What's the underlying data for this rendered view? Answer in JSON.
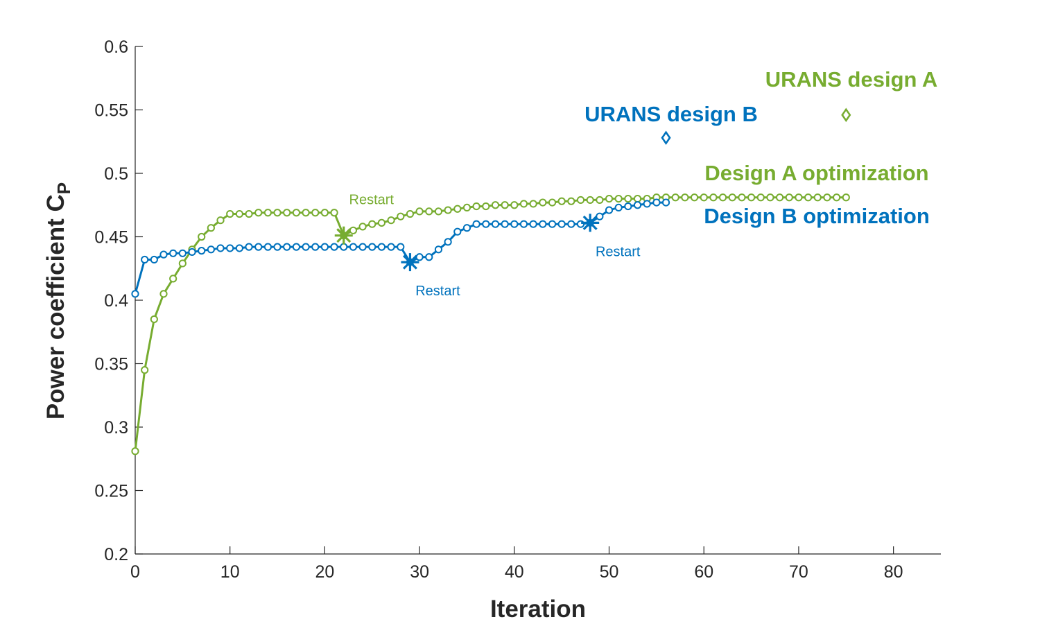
{
  "chart_data": {
    "type": "line",
    "xlabel": "Iteration",
    "ylabel": {
      "main": "Power coefficient C",
      "subscript": "P"
    },
    "xlim": [
      0,
      85
    ],
    "ylim": [
      0.2,
      0.6
    ],
    "xticks": [
      0,
      10,
      20,
      30,
      40,
      50,
      60,
      70,
      80
    ],
    "yticks": [
      0.2,
      0.25,
      0.3,
      0.35,
      0.4,
      0.45,
      0.5,
      0.55,
      0.6
    ],
    "grid": false,
    "colors": {
      "designA": "#77AC30",
      "designB": "#0072BD",
      "axis": "#262626"
    },
    "series": [
      {
        "key": "designA",
        "label": "Design A optimization",
        "x": [
          0,
          1,
          2,
          3,
          4,
          5,
          6,
          7,
          8,
          9,
          10,
          11,
          12,
          13,
          14,
          15,
          16,
          17,
          18,
          19,
          20,
          21,
          22,
          23,
          24,
          25,
          26,
          27,
          28,
          29,
          30,
          31,
          32,
          33,
          34,
          35,
          36,
          37,
          38,
          39,
          40,
          41,
          42,
          43,
          44,
          45,
          46,
          47,
          48,
          49,
          50,
          51,
          52,
          53,
          54,
          55,
          56,
          57,
          58,
          59,
          60,
          61,
          62,
          63,
          64,
          65,
          66,
          67,
          68,
          69,
          70,
          71,
          72,
          73,
          74,
          75
        ],
        "y": [
          0.281,
          0.345,
          0.385,
          0.405,
          0.417,
          0.429,
          0.44,
          0.45,
          0.457,
          0.463,
          0.468,
          0.468,
          0.468,
          0.469,
          0.469,
          0.469,
          0.469,
          0.469,
          0.469,
          0.469,
          0.469,
          0.469,
          0.451,
          0.455,
          0.458,
          0.46,
          0.461,
          0.463,
          0.466,
          0.468,
          0.47,
          0.47,
          0.47,
          0.471,
          0.472,
          0.473,
          0.474,
          0.474,
          0.475,
          0.475,
          0.475,
          0.476,
          0.476,
          0.477,
          0.477,
          0.478,
          0.478,
          0.479,
          0.479,
          0.479,
          0.48,
          0.48,
          0.48,
          0.48,
          0.48,
          0.481,
          0.481,
          0.481,
          0.481,
          0.481,
          0.481,
          0.481,
          0.481,
          0.481,
          0.481,
          0.481,
          0.481,
          0.481,
          0.481,
          0.481,
          0.481,
          0.481,
          0.481,
          0.481,
          0.481,
          0.481
        ]
      },
      {
        "key": "designB",
        "label": "Design B optimization",
        "x": [
          0,
          1,
          2,
          3,
          4,
          5,
          6,
          7,
          8,
          9,
          10,
          11,
          12,
          13,
          14,
          15,
          16,
          17,
          18,
          19,
          20,
          21,
          22,
          23,
          24,
          25,
          26,
          27,
          28,
          29,
          30,
          31,
          32,
          33,
          34,
          35,
          36,
          37,
          38,
          39,
          40,
          41,
          42,
          43,
          44,
          45,
          46,
          47,
          48,
          49,
          50,
          51,
          52,
          53,
          54,
          55,
          56
        ],
        "y": [
          0.405,
          0.432,
          0.432,
          0.436,
          0.437,
          0.437,
          0.438,
          0.439,
          0.44,
          0.441,
          0.441,
          0.441,
          0.442,
          0.442,
          0.442,
          0.442,
          0.442,
          0.442,
          0.442,
          0.442,
          0.442,
          0.442,
          0.442,
          0.442,
          0.442,
          0.442,
          0.442,
          0.442,
          0.442,
          0.43,
          0.434,
          0.434,
          0.44,
          0.446,
          0.454,
          0.457,
          0.46,
          0.46,
          0.46,
          0.46,
          0.46,
          0.46,
          0.46,
          0.46,
          0.46,
          0.46,
          0.46,
          0.46,
          0.461,
          0.466,
          0.471,
          0.473,
          0.474,
          0.475,
          0.476,
          0.477,
          0.477
        ]
      }
    ],
    "restarts": [
      {
        "series": "designA",
        "x": 22,
        "y": 0.451,
        "label": "Restart",
        "label_pos": "above"
      },
      {
        "series": "designB",
        "x": 29,
        "y": 0.43,
        "label": "Restart",
        "label_pos": "below"
      },
      {
        "series": "designB",
        "x": 48,
        "y": 0.461,
        "label": "Restart",
        "label_pos": "below"
      }
    ],
    "urans_points": [
      {
        "series": "designA",
        "x": 75,
        "y": 0.546,
        "label": "URANS design A"
      },
      {
        "series": "designB",
        "x": 56,
        "y": 0.528,
        "label": "URANS design B"
      }
    ]
  }
}
